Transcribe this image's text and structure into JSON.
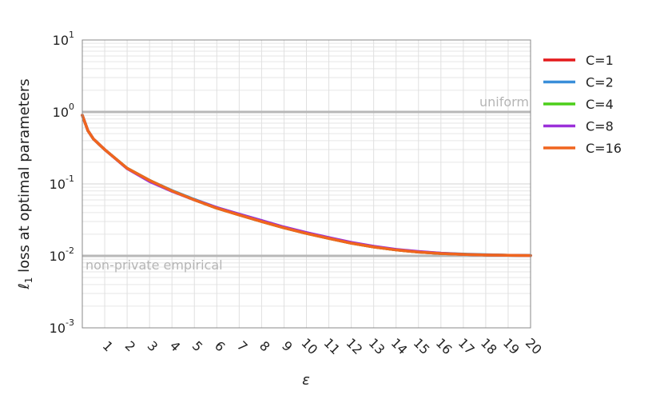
{
  "chart_data": {
    "type": "line",
    "title": "",
    "xlabel": "ε",
    "ylabel_prefix": "ℓ",
    "ylabel_sub": "1",
    "ylabel_rest": " loss at optimal parameters",
    "x_scale": "linear",
    "y_scale": "log",
    "xlim": [
      0,
      20
    ],
    "ylim": [
      0.001,
      10
    ],
    "x_ticks": [
      1,
      2,
      3,
      4,
      5,
      6,
      7,
      8,
      9,
      10,
      11,
      12,
      13,
      14,
      15,
      16,
      17,
      18,
      19,
      20
    ],
    "x_tick_labels": [
      "1",
      "2",
      "3",
      "4",
      "5",
      "6",
      "7",
      "8",
      "9",
      "10",
      "11",
      "12",
      "13",
      "14",
      "15",
      "16",
      "17",
      "18",
      "19",
      "20"
    ],
    "y_ticks": [
      {
        "value": 10,
        "base": "10",
        "exp": "1"
      },
      {
        "value": 1,
        "base": "10",
        "exp": "0"
      },
      {
        "value": 0.1,
        "base": "10",
        "exp": "-1"
      },
      {
        "value": 0.01,
        "base": "10",
        "exp": "-2"
      },
      {
        "value": 0.001,
        "base": "10",
        "exp": "-3"
      }
    ],
    "grid": true,
    "legend_position": "right, outside plot",
    "x": [
      0,
      0.25,
      0.5,
      1,
      2,
      3,
      4,
      5,
      6,
      7,
      8,
      9,
      10,
      11,
      12,
      13,
      14,
      15,
      16,
      17,
      18,
      19,
      20
    ],
    "series": [
      {
        "name": "C=1",
        "color": "#e41a1c",
        "values": [
          0.9,
          0.55,
          0.42,
          0.3,
          0.165,
          0.112,
          0.08,
          0.06,
          0.046,
          0.037,
          0.03,
          0.0245,
          0.0205,
          0.0175,
          0.015,
          0.0133,
          0.0121,
          0.0113,
          0.0108,
          0.0105,
          0.0103,
          0.0102,
          0.0101
        ]
      },
      {
        "name": "C=2",
        "color": "#3a8fd9",
        "values": [
          0.9,
          0.55,
          0.42,
          0.3,
          0.165,
          0.112,
          0.081,
          0.061,
          0.047,
          0.038,
          0.031,
          0.025,
          0.021,
          0.0178,
          0.0152,
          0.0135,
          0.0122,
          0.0114,
          0.0109,
          0.0106,
          0.0104,
          0.0102,
          0.0101
        ]
      },
      {
        "name": "C=4",
        "color": "#4cce1a",
        "values": [
          0.9,
          0.55,
          0.42,
          0.3,
          0.165,
          0.112,
          0.08,
          0.06,
          0.046,
          0.037,
          0.03,
          0.0245,
          0.0205,
          0.0175,
          0.015,
          0.0133,
          0.0121,
          0.0113,
          0.0108,
          0.0105,
          0.0103,
          0.0102,
          0.0101
        ]
      },
      {
        "name": "C=8",
        "color": "#9b30d9",
        "values": [
          0.9,
          0.55,
          0.42,
          0.3,
          0.163,
          0.108,
          0.079,
          0.06,
          0.047,
          0.038,
          0.031,
          0.0252,
          0.0211,
          0.018,
          0.0154,
          0.0136,
          0.0123,
          0.0115,
          0.0109,
          0.0105,
          0.0103,
          0.0102,
          0.0101
        ]
      },
      {
        "name": "C=16",
        "color": "#f0651e",
        "values": [
          0.9,
          0.55,
          0.42,
          0.3,
          0.165,
          0.112,
          0.08,
          0.06,
          0.046,
          0.037,
          0.03,
          0.0245,
          0.0205,
          0.0175,
          0.015,
          0.0133,
          0.0121,
          0.0113,
          0.0108,
          0.0105,
          0.0103,
          0.0102,
          0.0101
        ]
      }
    ],
    "reference_lines": [
      {
        "label": "uniform",
        "value": 1.0,
        "color": "#b8b8b8",
        "label_side": "right"
      },
      {
        "label": "non-private empirical",
        "value": 0.01,
        "color": "#b8b8b8",
        "label_side": "left"
      }
    ]
  }
}
